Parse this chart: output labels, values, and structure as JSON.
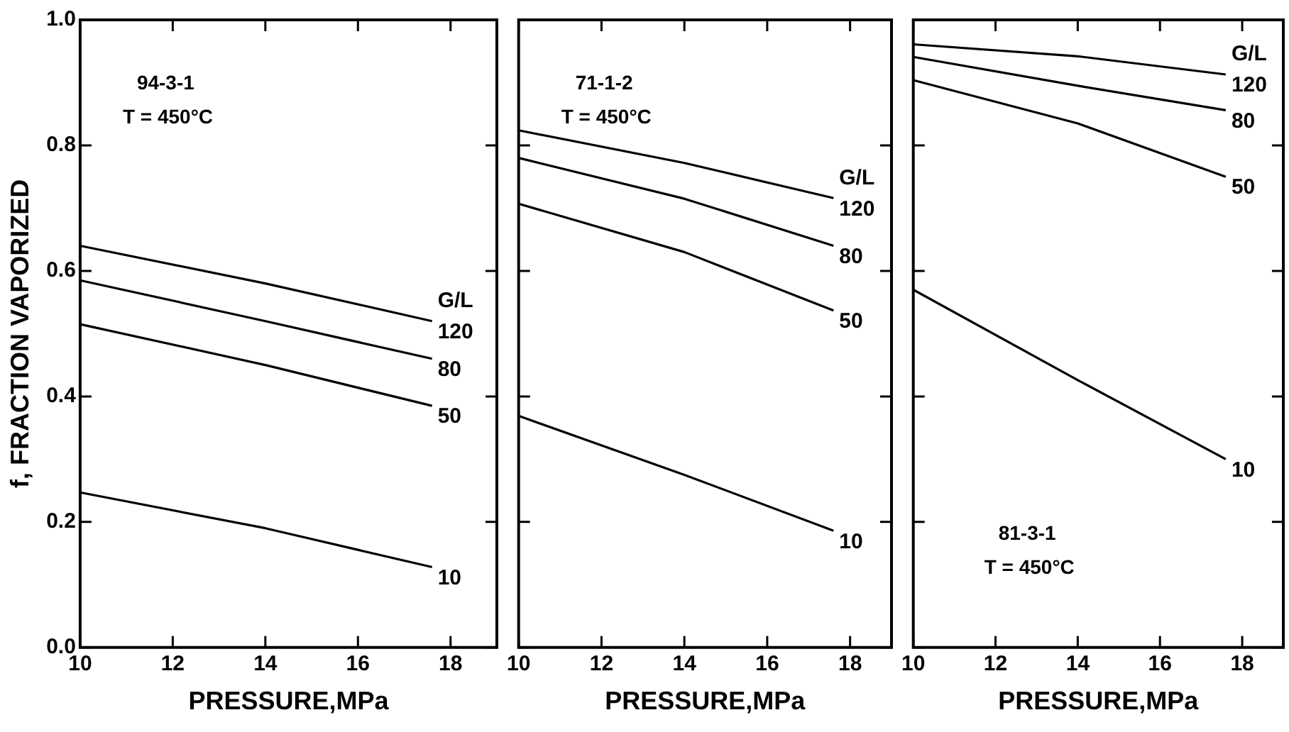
{
  "chart_data": [
    {
      "type": "line",
      "xlabel": "PRESSURE,MPa",
      "ylabel": "f, FRACTION VAPORIZED",
      "legend_title": "G/L",
      "annotations": [
        "94-3-1",
        "T = 450°C"
      ],
      "xlim": [
        10,
        19
      ],
      "xticks": [
        10,
        12,
        14,
        16,
        18
      ],
      "ylim": [
        0,
        1
      ],
      "yticks": [
        {
          "value": 0,
          "label": "0.0"
        },
        0.2,
        0.4,
        0.6,
        0.8,
        {
          "value": 1,
          "label": "1.0"
        }
      ],
      "x": [
        10,
        14,
        17.6
      ],
      "grid": false,
      "legend": "right",
      "marker": "none",
      "series": [
        {
          "name": "120",
          "color": "#000000",
          "values": [
            0.64,
            0.58,
            0.52
          ]
        },
        {
          "name": "80",
          "color": "#000000",
          "values": [
            0.585,
            0.52,
            0.46
          ]
        },
        {
          "name": "50",
          "color": "#000000",
          "values": [
            0.515,
            0.45,
            0.385
          ]
        },
        {
          "name": "10",
          "color": "#000000",
          "values": [
            0.247,
            0.19,
            0.128
          ]
        }
      ]
    },
    {
      "type": "line",
      "xlabel": "PRESSURE,MPa",
      "legend_title": "G/L",
      "annotations": [
        "71-1-2",
        "T = 450°C"
      ],
      "xlim": [
        10,
        19
      ],
      "xticks": [
        10,
        12,
        14,
        16,
        18
      ],
      "ylim": [
        0,
        1
      ],
      "yticks": [
        0,
        0.2,
        0.4,
        0.6,
        0.8,
        1
      ],
      "tick_labels": "x",
      "x": [
        10,
        14,
        17.6
      ],
      "grid": false,
      "legend": "right",
      "marker": "none",
      "series": [
        {
          "name": "120",
          "color": "#000000",
          "values": [
            0.824,
            0.772,
            0.716
          ]
        },
        {
          "name": "80",
          "color": "#000000",
          "values": [
            0.78,
            0.715,
            0.64
          ]
        },
        {
          "name": "50",
          "color": "#000000",
          "values": [
            0.707,
            0.63,
            0.537
          ]
        },
        {
          "name": "10",
          "color": "#000000",
          "values": [
            0.369,
            0.275,
            0.186
          ]
        }
      ]
    },
    {
      "type": "line",
      "xlabel": "PRESSURE,MPa",
      "legend_title": "G/L",
      "annotations": [
        "81-3-1",
        "T = 450°C"
      ],
      "xlim": [
        10,
        19
      ],
      "xticks": [
        10,
        12,
        14,
        16,
        18
      ],
      "ylim": [
        0,
        1
      ],
      "yticks": [
        0,
        0.2,
        0.4,
        0.6,
        0.8,
        1
      ],
      "tick_labels": "x",
      "x": [
        10,
        14,
        17.6
      ],
      "grid": false,
      "legend": "top right",
      "marker": "none",
      "series": [
        {
          "name": "120",
          "color": "#000000",
          "values": [
            0.961,
            0.942,
            0.913
          ]
        },
        {
          "name": "80",
          "color": "#000000",
          "values": [
            0.941,
            0.895,
            0.856
          ]
        },
        {
          "name": "50",
          "color": "#000000",
          "values": [
            0.904,
            0.835,
            0.75
          ]
        },
        {
          "name": "10",
          "color": "#000000",
          "values": [
            0.57,
            0.426,
            0.3
          ]
        }
      ]
    }
  ]
}
